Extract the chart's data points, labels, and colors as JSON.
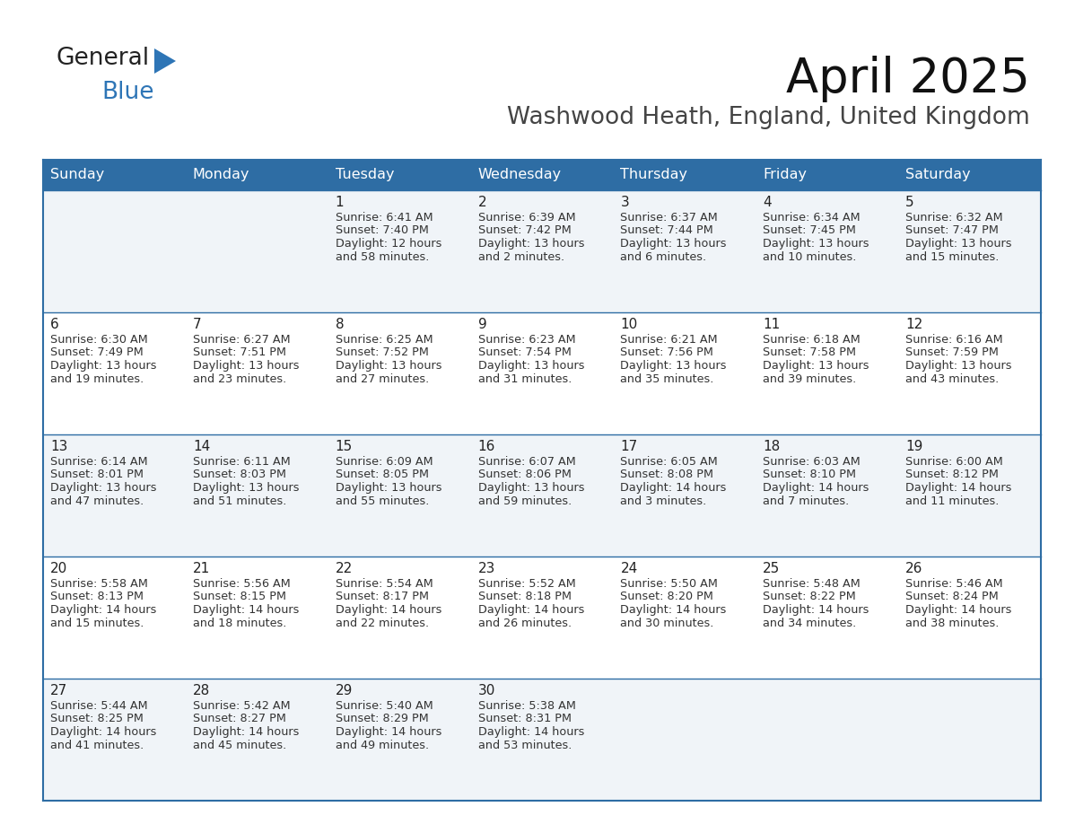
{
  "title": "April 2025",
  "subtitle": "Washwood Heath, England, United Kingdom",
  "header_bg": "#2E6DA4",
  "header_text": "#FFFFFF",
  "day_names": [
    "Sunday",
    "Monday",
    "Tuesday",
    "Wednesday",
    "Thursday",
    "Friday",
    "Saturday"
  ],
  "row_bg_light": "#F0F4F8",
  "row_bg_white": "#FFFFFF",
  "cell_text_color": "#333333",
  "day_number_color": "#222222",
  "border_color": "#2E6DA4",
  "separator_color": "#AAAACC",
  "background_color": "#FFFFFF",
  "calendar": [
    [
      {
        "day": null,
        "sunrise": null,
        "sunset": null,
        "daylight": null
      },
      {
        "day": null,
        "sunrise": null,
        "sunset": null,
        "daylight": null
      },
      {
        "day": 1,
        "sunrise": "6:41 AM",
        "sunset": "7:40 PM",
        "daylight": "12 hours\nand 58 minutes."
      },
      {
        "day": 2,
        "sunrise": "6:39 AM",
        "sunset": "7:42 PM",
        "daylight": "13 hours\nand 2 minutes."
      },
      {
        "day": 3,
        "sunrise": "6:37 AM",
        "sunset": "7:44 PM",
        "daylight": "13 hours\nand 6 minutes."
      },
      {
        "day": 4,
        "sunrise": "6:34 AM",
        "sunset": "7:45 PM",
        "daylight": "13 hours\nand 10 minutes."
      },
      {
        "day": 5,
        "sunrise": "6:32 AM",
        "sunset": "7:47 PM",
        "daylight": "13 hours\nand 15 minutes."
      }
    ],
    [
      {
        "day": 6,
        "sunrise": "6:30 AM",
        "sunset": "7:49 PM",
        "daylight": "13 hours\nand 19 minutes."
      },
      {
        "day": 7,
        "sunrise": "6:27 AM",
        "sunset": "7:51 PM",
        "daylight": "13 hours\nand 23 minutes."
      },
      {
        "day": 8,
        "sunrise": "6:25 AM",
        "sunset": "7:52 PM",
        "daylight": "13 hours\nand 27 minutes."
      },
      {
        "day": 9,
        "sunrise": "6:23 AM",
        "sunset": "7:54 PM",
        "daylight": "13 hours\nand 31 minutes."
      },
      {
        "day": 10,
        "sunrise": "6:21 AM",
        "sunset": "7:56 PM",
        "daylight": "13 hours\nand 35 minutes."
      },
      {
        "day": 11,
        "sunrise": "6:18 AM",
        "sunset": "7:58 PM",
        "daylight": "13 hours\nand 39 minutes."
      },
      {
        "day": 12,
        "sunrise": "6:16 AM",
        "sunset": "7:59 PM",
        "daylight": "13 hours\nand 43 minutes."
      }
    ],
    [
      {
        "day": 13,
        "sunrise": "6:14 AM",
        "sunset": "8:01 PM",
        "daylight": "13 hours\nand 47 minutes."
      },
      {
        "day": 14,
        "sunrise": "6:11 AM",
        "sunset": "8:03 PM",
        "daylight": "13 hours\nand 51 minutes."
      },
      {
        "day": 15,
        "sunrise": "6:09 AM",
        "sunset": "8:05 PM",
        "daylight": "13 hours\nand 55 minutes."
      },
      {
        "day": 16,
        "sunrise": "6:07 AM",
        "sunset": "8:06 PM",
        "daylight": "13 hours\nand 59 minutes."
      },
      {
        "day": 17,
        "sunrise": "6:05 AM",
        "sunset": "8:08 PM",
        "daylight": "14 hours\nand 3 minutes."
      },
      {
        "day": 18,
        "sunrise": "6:03 AM",
        "sunset": "8:10 PM",
        "daylight": "14 hours\nand 7 minutes."
      },
      {
        "day": 19,
        "sunrise": "6:00 AM",
        "sunset": "8:12 PM",
        "daylight": "14 hours\nand 11 minutes."
      }
    ],
    [
      {
        "day": 20,
        "sunrise": "5:58 AM",
        "sunset": "8:13 PM",
        "daylight": "14 hours\nand 15 minutes."
      },
      {
        "day": 21,
        "sunrise": "5:56 AM",
        "sunset": "8:15 PM",
        "daylight": "14 hours\nand 18 minutes."
      },
      {
        "day": 22,
        "sunrise": "5:54 AM",
        "sunset": "8:17 PM",
        "daylight": "14 hours\nand 22 minutes."
      },
      {
        "day": 23,
        "sunrise": "5:52 AM",
        "sunset": "8:18 PM",
        "daylight": "14 hours\nand 26 minutes."
      },
      {
        "day": 24,
        "sunrise": "5:50 AM",
        "sunset": "8:20 PM",
        "daylight": "14 hours\nand 30 minutes."
      },
      {
        "day": 25,
        "sunrise": "5:48 AM",
        "sunset": "8:22 PM",
        "daylight": "14 hours\nand 34 minutes."
      },
      {
        "day": 26,
        "sunrise": "5:46 AM",
        "sunset": "8:24 PM",
        "daylight": "14 hours\nand 38 minutes."
      }
    ],
    [
      {
        "day": 27,
        "sunrise": "5:44 AM",
        "sunset": "8:25 PM",
        "daylight": "14 hours\nand 41 minutes."
      },
      {
        "day": 28,
        "sunrise": "5:42 AM",
        "sunset": "8:27 PM",
        "daylight": "14 hours\nand 45 minutes."
      },
      {
        "day": 29,
        "sunrise": "5:40 AM",
        "sunset": "8:29 PM",
        "daylight": "14 hours\nand 49 minutes."
      },
      {
        "day": 30,
        "sunrise": "5:38 AM",
        "sunset": "8:31 PM",
        "daylight": "14 hours\nand 53 minutes."
      },
      {
        "day": null,
        "sunrise": null,
        "sunset": null,
        "daylight": null
      },
      {
        "day": null,
        "sunrise": null,
        "sunset": null,
        "daylight": null
      },
      {
        "day": null,
        "sunrise": null,
        "sunset": null,
        "daylight": null
      }
    ]
  ]
}
